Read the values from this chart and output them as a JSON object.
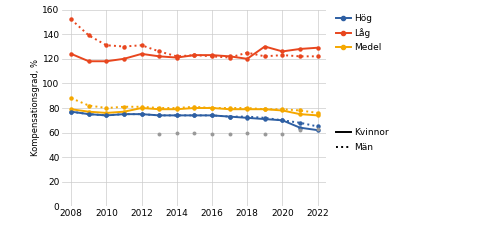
{
  "years": [
    2008,
    2009,
    2010,
    2011,
    2012,
    2013,
    2014,
    2015,
    2016,
    2017,
    2018,
    2019,
    2020,
    2021,
    2022
  ],
  "hog_kvinnor": [
    77,
    75,
    74,
    75,
    75,
    74,
    74,
    74,
    74,
    73,
    72,
    71,
    70,
    64,
    62
  ],
  "hog_man": [
    77,
    75,
    74,
    75,
    75,
    74,
    74,
    74,
    74,
    73,
    73,
    72,
    70,
    68,
    65
  ],
  "lag_kvinnor": [
    124,
    118,
    118,
    120,
    124,
    122,
    121,
    123,
    123,
    122,
    120,
    130,
    126,
    128,
    129
  ],
  "lag_man": [
    152,
    139,
    131,
    130,
    131,
    126,
    122,
    123,
    122,
    121,
    125,
    122,
    123,
    122,
    122
  ],
  "medel_kvinnor": [
    79,
    77,
    76,
    77,
    80,
    79,
    79,
    80,
    80,
    79,
    79,
    79,
    78,
    75,
    74
  ],
  "medel_man": [
    88,
    82,
    80,
    81,
    81,
    80,
    80,
    81,
    80,
    80,
    80,
    79,
    79,
    78,
    76
  ],
  "scatter_x": [
    2013,
    2014,
    2015,
    2016,
    2017,
    2018,
    2019,
    2020,
    2021,
    2022
  ],
  "scatter_y": [
    59,
    60,
    60,
    59,
    59,
    60,
    59,
    59,
    62,
    63
  ],
  "color_hog": "#2E5FA3",
  "color_lag": "#E8461E",
  "color_medel": "#F5A800",
  "color_scatter": "#999999",
  "ylabel": "Kompensationsgrad, %",
  "ylim": [
    0,
    160
  ],
  "yticks": [
    0,
    20,
    40,
    60,
    80,
    100,
    120,
    140,
    160
  ],
  "xlim": [
    2007.5,
    2022.5
  ],
  "xticks": [
    2008,
    2010,
    2012,
    2014,
    2016,
    2018,
    2020,
    2022
  ],
  "bg_color": "#ffffff",
  "grid_color": "#cccccc"
}
